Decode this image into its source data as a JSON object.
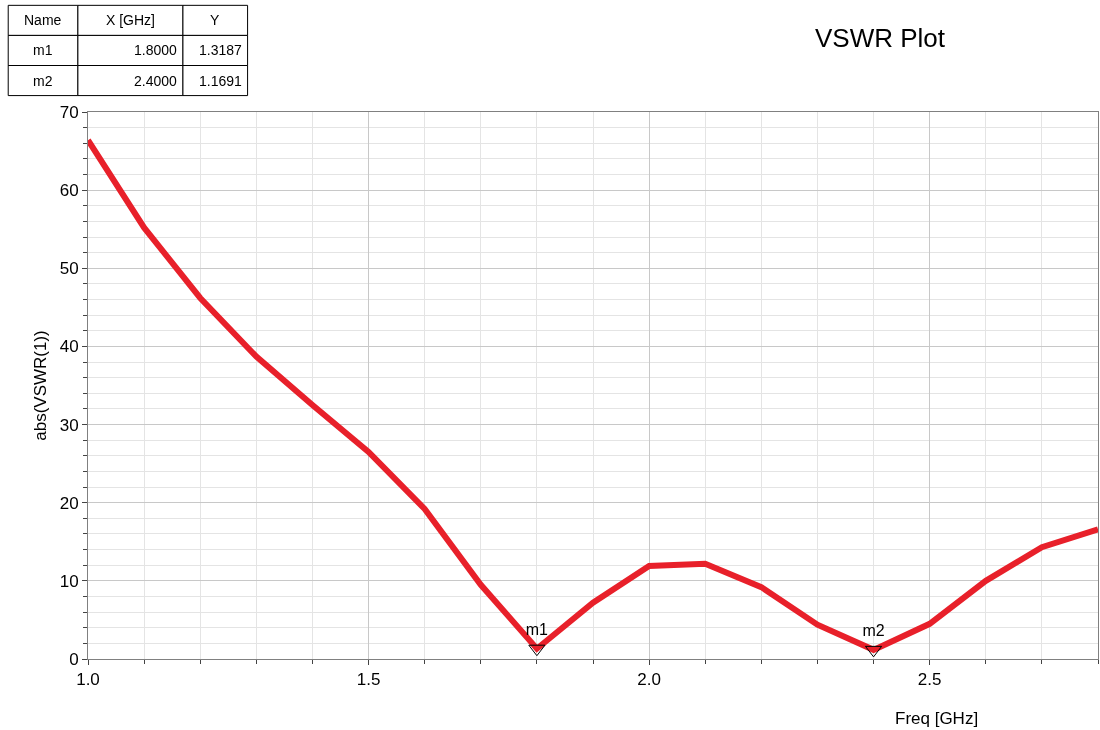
{
  "chart_data": {
    "type": "line",
    "title": "VSWR Plot",
    "xlabel": "Freq [GHz]",
    "ylabel": "abs(VSWR(1))",
    "x": [
      1.0,
      1.1,
      1.2,
      1.3,
      1.4,
      1.5,
      1.6,
      1.7,
      1.8,
      1.9,
      2.0,
      2.1,
      2.2,
      2.3,
      2.4,
      2.5,
      2.6,
      2.7,
      2.8
    ],
    "series": [
      {
        "color": "#e8202a",
        "values": [
          66.4,
          55.2,
          46.2,
          38.7,
          32.5,
          26.5,
          19.2,
          9.5,
          1.3187,
          7.2,
          11.9,
          12.2,
          9.2,
          4.4,
          1.1691,
          4.5,
          10.0,
          14.3,
          16.6
        ]
      }
    ],
    "xlim": [
      1.0,
      2.8
    ],
    "xticks": [
      {
        "value": 1.0,
        "label": "1.0"
      },
      1.5,
      {
        "value": 2.0,
        "label": "2.0"
      },
      2.5
    ],
    "ylim": [
      0,
      70
    ],
    "yticks": [
      0,
      10,
      20,
      30,
      40,
      50,
      60,
      70
    ],
    "grid": true,
    "marker": "none",
    "line_style": "solid",
    "annotations": [
      "Name",
      "X [GHz]",
      "Y",
      "m1",
      "1.8000",
      "1.3187",
      "m2",
      "2.4000",
      "1.1691",
      {
        "text": "m1",
        "x": 1.8,
        "y": 1.3187
      },
      {
        "text": "m2",
        "x": 2.4,
        "y": 1.1691
      }
    ]
  }
}
